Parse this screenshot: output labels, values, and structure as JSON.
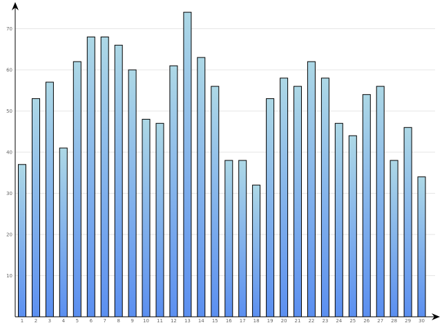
{
  "chart_data": {
    "type": "bar",
    "categories": [
      "1",
      "2",
      "3",
      "4",
      "5",
      "6",
      "7",
      "8",
      "9",
      "10",
      "11",
      "12",
      "13",
      "14",
      "15",
      "16",
      "17",
      "18",
      "19",
      "20",
      "21",
      "22",
      "23",
      "24",
      "25",
      "26",
      "27",
      "28",
      "29",
      "30"
    ],
    "values": [
      37,
      53,
      57,
      41,
      62,
      68,
      68,
      66,
      60,
      48,
      47,
      61,
      74,
      63,
      56,
      38,
      38,
      32,
      53,
      58,
      56,
      62,
      58,
      47,
      44,
      54,
      56,
      38,
      46,
      34
    ],
    "y_ticks": [
      "10",
      "20",
      "30",
      "40",
      "50",
      "60",
      "70"
    ],
    "ylim": [
      0,
      77
    ],
    "grid": true,
    "legend": "none",
    "colors": {
      "bar_top": "#add8e6",
      "bar_bottom": "#5b8ff0",
      "grid": "#e6e6e6",
      "axis": "#000000",
      "bar_outline": "#000000"
    }
  }
}
